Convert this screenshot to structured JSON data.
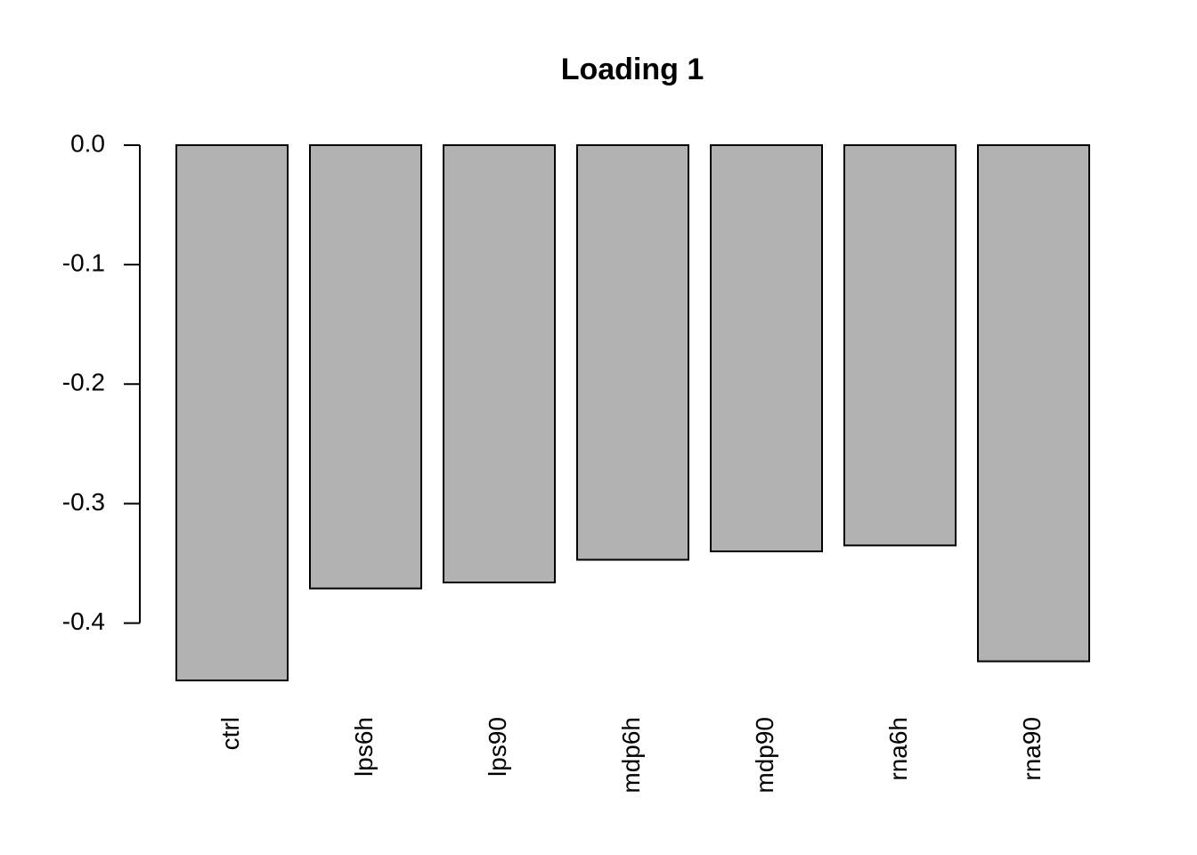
{
  "chart_data": {
    "type": "bar",
    "title": "Loading 1",
    "categories": [
      "ctrl",
      "lps6h",
      "lps90",
      "mdp6h",
      "mdp90",
      "rna6h",
      "rna90"
    ],
    "values": [
      -0.448,
      -0.371,
      -0.366,
      -0.347,
      -0.34,
      -0.335,
      -0.432
    ],
    "color": "#b2b2b2",
    "ylim": [
      -0.448,
      0
    ],
    "yticks": [
      {
        "value": 0,
        "label": "0.0"
      },
      -0.1,
      -0.2,
      -0.3,
      -0.4
    ],
    "grid": false
  }
}
